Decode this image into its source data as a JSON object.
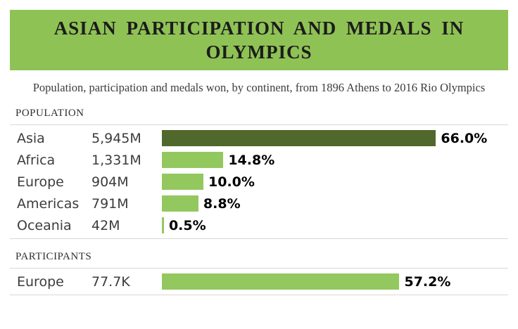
{
  "header": {
    "title": "ASIAN PARTICIPATION AND MEDALS IN OLYMPICS"
  },
  "subtitle": "Population, participation and medals won, by continent, from 1896 Athens to 2016 Rio Olympics",
  "colors": {
    "banner": "#8fc255",
    "bar_highlight": "#50682b",
    "bar_normal": "#92c85e"
  },
  "sections": [
    {
      "label": "POPULATION",
      "rows": [
        {
          "name": "Asia",
          "value": "5,945M",
          "pct": 66.0,
          "pct_label": "66.0%",
          "highlight": true
        },
        {
          "name": "Africa",
          "value": "1,331M",
          "pct": 14.8,
          "pct_label": "14.8%",
          "highlight": false
        },
        {
          "name": "Europe",
          "value": "904M",
          "pct": 10.0,
          "pct_label": "10.0%",
          "highlight": false
        },
        {
          "name": "Americas",
          "value": "791M",
          "pct": 8.8,
          "pct_label": "8.8%",
          "highlight": false
        },
        {
          "name": "Oceania",
          "value": "42M",
          "pct": 0.5,
          "pct_label": "0.5%",
          "highlight": false
        }
      ]
    },
    {
      "label": "PARTICIPANTS",
      "rows": [
        {
          "name": "Europe",
          "value": "77.7K",
          "pct": 57.2,
          "pct_label": "57.2%",
          "highlight": false
        }
      ]
    }
  ],
  "chart_data": [
    {
      "type": "bar",
      "orientation": "horizontal",
      "title": "POPULATION",
      "categories": [
        "Asia",
        "Africa",
        "Europe",
        "Americas",
        "Oceania"
      ],
      "values": [
        66.0,
        14.8,
        10.0,
        8.8,
        0.5
      ],
      "value_labels": [
        "5,945M",
        "1,331M",
        "904M",
        "791M",
        "42M"
      ],
      "xlabel": "",
      "ylabel": "",
      "xlim": [
        0,
        100
      ],
      "grid": false,
      "legend": "none",
      "highlight_category": "Asia"
    },
    {
      "type": "bar",
      "orientation": "horizontal",
      "title": "PARTICIPANTS",
      "categories": [
        "Europe"
      ],
      "values": [
        57.2
      ],
      "value_labels": [
        "77.7K"
      ],
      "xlabel": "",
      "ylabel": "",
      "xlim": [
        0,
        100
      ],
      "grid": false,
      "legend": "none",
      "note": "row partially cut off at bottom of screenshot"
    }
  ]
}
